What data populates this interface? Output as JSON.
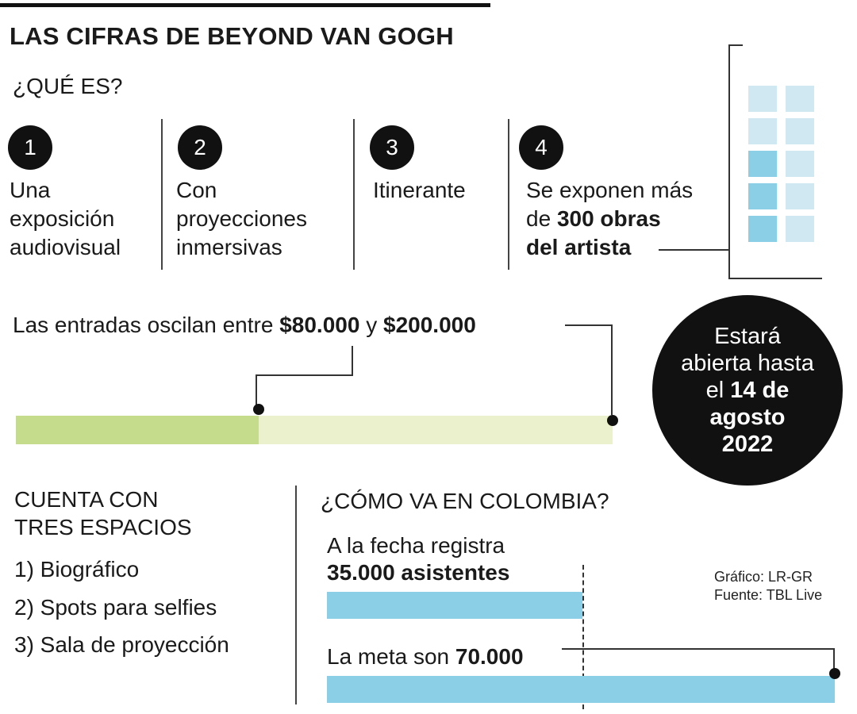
{
  "title": "LAS CIFRAS DE BEYOND VAN GOGH",
  "que_es": {
    "heading": "¿QUÉ ES?",
    "items": [
      {
        "number": "1",
        "lines": [
          "Una",
          "exposición",
          "audiovisual"
        ]
      },
      {
        "number": "2",
        "lines": [
          "Con",
          "proyecciones",
          "inmersivas"
        ]
      },
      {
        "number": "3",
        "lines": [
          "Itinerante"
        ]
      },
      {
        "number": "4",
        "line1": "Se exponen más",
        "line2_prefix": "de ",
        "line2_bold": "300 obras",
        "line3_bold": "del artista"
      }
    ]
  },
  "entradas": {
    "prefix": "Las entradas oscilan entre ",
    "min_label": "$80.000",
    "connector": " y ",
    "max_label": "$200.000"
  },
  "cierre": {
    "line1": "Estará",
    "line2": "abierta hasta",
    "line3_prefix": "el ",
    "line3_bold": "14 de",
    "line4_bold": "agosto",
    "line5_bold": "2022"
  },
  "espacios": {
    "heading_line1": "CUENTA CON",
    "heading_line2": "TRES ESPACIOS",
    "items": [
      "1) Biográfico",
      "2) Spots para selfies",
      "3) Sala de proyección"
    ]
  },
  "colombia": {
    "heading": "¿CÓMO VA EN COLOMBIA?",
    "registra_line1": "A la fecha registra",
    "registra_bold": "35.000 asistentes",
    "meta_prefix": "La meta son ",
    "meta_bold": "70.000"
  },
  "credits": {
    "grafico": "Gráfico: LR-GR",
    "fuente": "Fuente: TBL Live"
  },
  "colors": {
    "price_fill": "#c5dc8c",
    "price_track": "#eaf1cc",
    "attendance": "#8acfe6",
    "window_light": "#cfe8f2",
    "window_dark": "#8acfe6",
    "dark": "#111111"
  },
  "chart_data": [
    {
      "type": "bar",
      "name": "price_range",
      "categories": [
        "Entradas"
      ],
      "min": 80000,
      "max": 200000,
      "xlim": [
        0,
        200000
      ]
    },
    {
      "type": "bar",
      "name": "attendance",
      "categories": [
        "A la fecha",
        "Meta"
      ],
      "values": [
        35000,
        70000
      ],
      "xlim": [
        0,
        70000
      ]
    }
  ]
}
